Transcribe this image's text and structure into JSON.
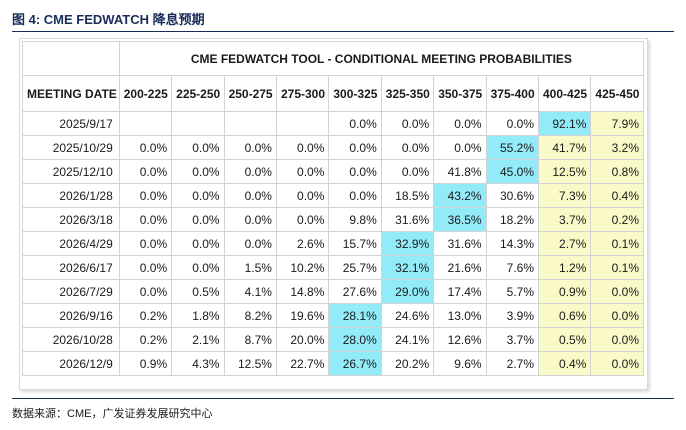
{
  "figure": {
    "caption": "图 4: CME FEDWATCH 降息预期",
    "source": "数据来源：CME，广发证券发展研究中心"
  },
  "table": {
    "title": "CME FEDWATCH TOOL - CONDITIONAL MEETING PROBABILITIES",
    "date_header": "MEETING DATE",
    "columns": [
      "200-225",
      "225-250",
      "250-275",
      "275-300",
      "300-325",
      "325-350",
      "350-375",
      "375-400",
      "400-425",
      "425-450"
    ],
    "rows": [
      {
        "date": "2025/9/17",
        "values": [
          "",
          "",
          "",
          "",
          "0.0%",
          "0.0%",
          "0.0%",
          "0.0%",
          "92.1%",
          "7.9%"
        ],
        "highlight": 8
      },
      {
        "date": "2025/10/29",
        "values": [
          "0.0%",
          "0.0%",
          "0.0%",
          "0.0%",
          "0.0%",
          "0.0%",
          "0.0%",
          "55.2%",
          "41.7%",
          "3.2%"
        ],
        "highlight": 7
      },
      {
        "date": "2025/12/10",
        "values": [
          "0.0%",
          "0.0%",
          "0.0%",
          "0.0%",
          "0.0%",
          "0.0%",
          "41.8%",
          "45.0%",
          "12.5%",
          "0.8%"
        ],
        "highlight": 7
      },
      {
        "date": "2026/1/28",
        "values": [
          "0.0%",
          "0.0%",
          "0.0%",
          "0.0%",
          "0.0%",
          "18.5%",
          "43.2%",
          "30.6%",
          "7.3%",
          "0.4%"
        ],
        "highlight": 6
      },
      {
        "date": "2026/3/18",
        "values": [
          "0.0%",
          "0.0%",
          "0.0%",
          "0.0%",
          "9.8%",
          "31.6%",
          "36.5%",
          "18.2%",
          "3.7%",
          "0.2%"
        ],
        "highlight": 6
      },
      {
        "date": "2026/4/29",
        "values": [
          "0.0%",
          "0.0%",
          "0.0%",
          "2.6%",
          "15.7%",
          "32.9%",
          "31.6%",
          "14.3%",
          "2.7%",
          "0.1%"
        ],
        "highlight": 5
      },
      {
        "date": "2026/6/17",
        "values": [
          "0.0%",
          "0.0%",
          "1.5%",
          "10.2%",
          "25.7%",
          "32.1%",
          "21.6%",
          "7.6%",
          "1.2%",
          "0.1%"
        ],
        "highlight": 5
      },
      {
        "date": "2026/7/29",
        "values": [
          "0.0%",
          "0.5%",
          "4.1%",
          "14.8%",
          "27.6%",
          "29.0%",
          "17.4%",
          "5.7%",
          "0.9%",
          "0.0%"
        ],
        "highlight": 5
      },
      {
        "date": "2026/9/16",
        "values": [
          "0.2%",
          "1.8%",
          "8.2%",
          "19.6%",
          "28.1%",
          "24.6%",
          "13.0%",
          "3.9%",
          "0.6%",
          "0.0%"
        ],
        "highlight": 4
      },
      {
        "date": "2026/10/28",
        "values": [
          "0.2%",
          "2.1%",
          "8.7%",
          "20.0%",
          "28.0%",
          "24.1%",
          "12.6%",
          "3.7%",
          "0.5%",
          "0.0%"
        ],
        "highlight": 4
      },
      {
        "date": "2026/12/9",
        "values": [
          "0.9%",
          "4.3%",
          "12.5%",
          "22.7%",
          "26.7%",
          "20.2%",
          "9.6%",
          "2.7%",
          "0.4%",
          "0.0%"
        ],
        "highlight": 4
      }
    ]
  },
  "colors": {
    "highlight": "#93eaf8",
    "below_current_range": "#fafac9",
    "caption": "#1a2d5a"
  },
  "yellow_from_column": 8
}
